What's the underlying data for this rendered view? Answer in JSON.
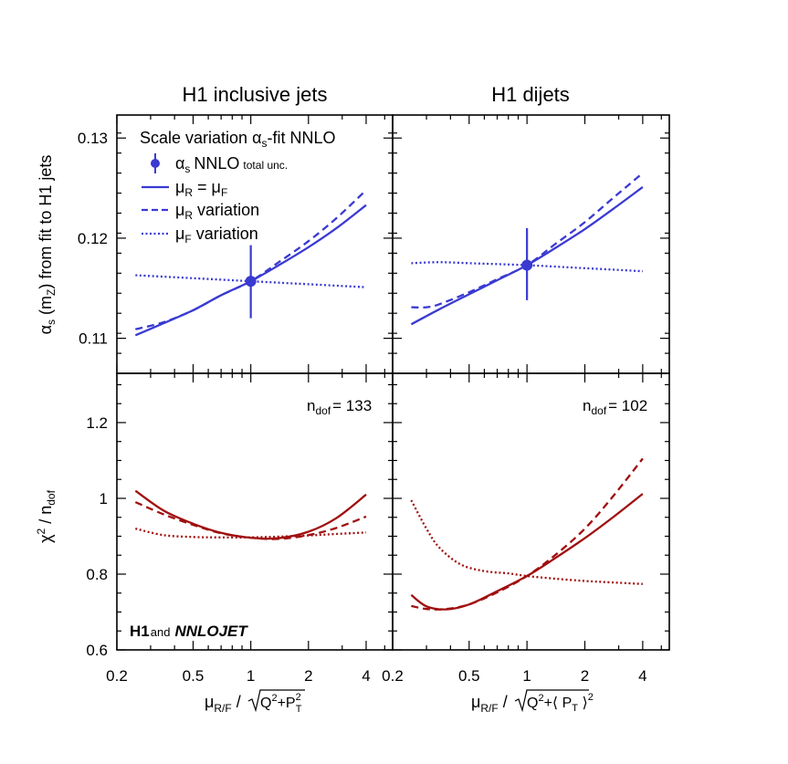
{
  "chart_data": {
    "type": "line",
    "colors": {
      "alpha": "#3a3ad2",
      "chi2": "#a00f0f",
      "frame": "#000000"
    },
    "shared_x": {
      "scale": "log",
      "xlim": [
        0.2,
        5.5
      ],
      "ticks": [
        0.2,
        0.5,
        1,
        2,
        4
      ],
      "tick_labels": [
        "0.2",
        "0.5",
        "1",
        "2",
        "4"
      ]
    },
    "row_alpha": {
      "ylabel": "α_s (m_Z) from fit to H1 jets",
      "ylim": [
        0.1065,
        0.1323
      ],
      "ticks": [
        0.11,
        0.12,
        0.13
      ],
      "tick_labels": [
        "0.11",
        "0.12",
        "0.13"
      ]
    },
    "row_chi2": {
      "ylabel": "χ² / n_dof",
      "ylim": [
        0.6,
        1.33
      ],
      "ticks": [
        0.6,
        0.8,
        1,
        1.2
      ],
      "tick_labels": [
        "0.6",
        "0.8",
        "1",
        "1.2"
      ]
    },
    "columns": [
      {
        "title": "H1 inclusive jets",
        "xlabel": "μ_R/F / √(Q²+P_T²)",
        "alpha": {
          "point": {
            "x": 1,
            "y": 0.1157,
            "err_low": 0.112,
            "err_high": 0.1193
          },
          "series": [
            {
              "name": "μR = μF",
              "style": "solid",
              "x": [
                0.25,
                0.35,
                0.5,
                0.7,
                1,
                1.4,
                2,
                2.8,
                4
              ],
              "y": [
                0.1103,
                0.1115,
                0.1128,
                0.1143,
                0.1157,
                0.1173,
                0.1191,
                0.121,
                0.1233
              ]
            },
            {
              "name": "μR variation",
              "style": "dashed",
              "x": [
                0.25,
                0.35,
                0.5,
                0.7,
                1,
                1.4,
                2,
                2.8,
                4
              ],
              "y": [
                0.1109,
                0.1116,
                0.1128,
                0.1143,
                0.1157,
                0.1176,
                0.1197,
                0.122,
                0.1248
              ]
            },
            {
              "name": "μF variation",
              "style": "dotted",
              "x": [
                0.25,
                0.5,
                1,
                2,
                4
              ],
              "y": [
                0.1163,
                0.116,
                0.1157,
                0.1154,
                0.1151
              ]
            }
          ]
        },
        "chi2": {
          "ndof_prefix": "n",
          "ndof_sub": "dof",
          "ndof_value": "= 133",
          "series": [
            {
              "name": "μR = μF",
              "style": "solid",
              "x": [
                0.25,
                0.35,
                0.5,
                0.7,
                1,
                1.4,
                2,
                2.8,
                4
              ],
              "y": [
                1.02,
                0.968,
                0.933,
                0.909,
                0.896,
                0.895,
                0.912,
                0.948,
                1.01
              ]
            },
            {
              "name": "μR variation",
              "style": "dashed",
              "x": [
                0.25,
                0.35,
                0.5,
                0.7,
                1,
                1.4,
                2,
                2.8,
                4
              ],
              "y": [
                0.99,
                0.958,
                0.93,
                0.908,
                0.896,
                0.893,
                0.903,
                0.922,
                0.952
              ]
            },
            {
              "name": "μF variation",
              "style": "dotted",
              "x": [
                0.25,
                0.35,
                0.5,
                0.7,
                1,
                1.4,
                2,
                2.8,
                4
              ],
              "y": [
                0.92,
                0.903,
                0.898,
                0.897,
                0.897,
                0.899,
                0.902,
                0.906,
                0.91
              ]
            }
          ]
        }
      },
      {
        "title": "H1 dijets",
        "xlabel": "μ_R/F / √(Q²+⟨P_T⟩²)",
        "alpha": {
          "point": {
            "x": 1,
            "y": 0.1173,
            "err_low": 0.1138,
            "err_high": 0.121
          },
          "series": [
            {
              "name": "μR = μF",
              "style": "solid",
              "x": [
                0.25,
                0.35,
                0.5,
                0.7,
                1,
                1.4,
                2,
                2.8,
                4
              ],
              "y": [
                0.1114,
                0.1129,
                0.1144,
                0.1158,
                0.1173,
                0.119,
                0.1209,
                0.1229,
                0.1251
              ]
            },
            {
              "name": "μR variation",
              "style": "dashed",
              "x": [
                0.25,
                0.3,
                0.35,
                0.5,
                0.7,
                1,
                1.4,
                2,
                2.8,
                4
              ],
              "y": [
                0.1131,
                0.1131,
                0.1134,
                0.1146,
                0.1159,
                0.1173,
                0.1194,
                0.1216,
                0.124,
                0.1265
              ]
            },
            {
              "name": "μF variation",
              "style": "dotted",
              "x": [
                0.25,
                0.35,
                0.5,
                1,
                2,
                4
              ],
              "y": [
                0.1175,
                0.1176,
                0.1175,
                0.1173,
                0.117,
                0.1167
              ]
            }
          ]
        },
        "chi2": {
          "ndof_prefix": "n",
          "ndof_sub": "dof",
          "ndof_value": "= 102",
          "series": [
            {
              "name": "μR = μF",
              "style": "solid",
              "x": [
                0.25,
                0.3,
                0.38,
                0.5,
                0.7,
                1,
                1.4,
                2,
                2.8,
                4
              ],
              "y": [
                0.745,
                0.715,
                0.707,
                0.72,
                0.755,
                0.795,
                0.842,
                0.895,
                0.95,
                1.012
              ]
            },
            {
              "name": "μR variation",
              "style": "dashed",
              "x": [
                0.25,
                0.3,
                0.38,
                0.5,
                0.7,
                1,
                1.4,
                2,
                2.8,
                4
              ],
              "y": [
                0.716,
                0.708,
                0.708,
                0.72,
                0.752,
                0.795,
                0.85,
                0.92,
                1.005,
                1.105
              ]
            },
            {
              "name": "μF variation",
              "style": "dotted",
              "x": [
                0.25,
                0.3,
                0.35,
                0.45,
                0.6,
                0.8,
                1,
                1.4,
                2,
                2.8,
                4
              ],
              "y": [
                0.995,
                0.92,
                0.87,
                0.826,
                0.808,
                0.802,
                0.795,
                0.788,
                0.782,
                0.778,
                0.774
              ]
            }
          ]
        }
      }
    ],
    "legend": {
      "header": "Scale variation α_s-fit NNLO",
      "entries": [
        {
          "kind": "point",
          "sym": "α",
          "sub": "s",
          "text": "NNLO",
          "small": "total unc."
        },
        {
          "kind": "solid",
          "text": "μ_R = μ_F"
        },
        {
          "kind": "dashed",
          "text": "μ_R variation"
        },
        {
          "kind": "dotted",
          "text": "μ_F variation"
        }
      ]
    },
    "branding": {
      "h1": "H1",
      "and": "and",
      "nnlojet": "NNLOJET"
    }
  }
}
